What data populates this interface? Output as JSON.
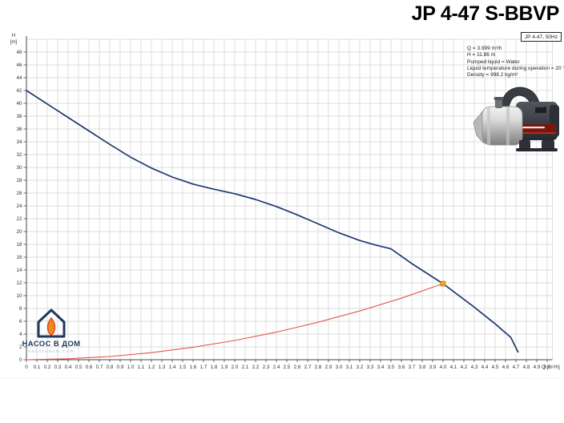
{
  "header": {
    "title": "JP 4-47 S-BBVP"
  },
  "info_panel": {
    "model_label": "JP 4-47, 50Hz",
    "lines": [
      "Q = 3.999 m³/h",
      "H = 11.86 m",
      "Pumped liquid = Water",
      "Liquid temperature during operation = 20 °C",
      "Density = 998.2 kg/m³"
    ]
  },
  "logo": {
    "name": "НАСОС В ДОМ",
    "site": "nasosvdom.com"
  },
  "colors": {
    "pump_curve": "#1d3a6d",
    "system_curve": "#e2574b",
    "operating_point_fill": "#f5a623",
    "operating_point_border": "#c77800",
    "grid": "#d2d2d2",
    "axis": "#444444",
    "tick_text": "#333333",
    "logo_navy": "#1c3a5e",
    "flame_orange": "#f08a1e",
    "flame_red": "#e04a1e"
  },
  "chart_data": {
    "type": "line",
    "title": "JP 4-47 S-BBVP",
    "xlabel": "Q [m³/h]",
    "ylabel_line1": "H",
    "ylabel_line2": "[m]",
    "xlim": [
      0,
      5.05
    ],
    "ylim": [
      0,
      50.5
    ],
    "grid": true,
    "x_tick_step": 0.1,
    "y_tick_step": 2,
    "x_ticks": [
      "0",
      "0.1",
      "0.2",
      "0.3",
      "0.4",
      "0.5",
      "0.6",
      "0.7",
      "0.8",
      "0.9",
      "1.0",
      "1.1",
      "1.2",
      "1.3",
      "1.4",
      "1.5",
      "1.6",
      "1.7",
      "1.8",
      "1.9",
      "2.0",
      "2.1",
      "2.2",
      "2.3",
      "2.4",
      "2.5",
      "2.6",
      "2.7",
      "2.8",
      "2.9",
      "3.0",
      "3.1",
      "3.2",
      "3.3",
      "3.4",
      "3.5",
      "3.6",
      "3.7",
      "3.8",
      "3.9",
      "4.0",
      "4.1",
      "4.2",
      "4.3",
      "4.4",
      "4.5",
      "4.6",
      "4.7",
      "4.8",
      "4.9",
      "5.0"
    ],
    "y_ticks": [
      "0",
      "2",
      "4",
      "6",
      "8",
      "10",
      "12",
      "14",
      "16",
      "18",
      "20",
      "22",
      "24",
      "26",
      "28",
      "30",
      "32",
      "34",
      "36",
      "38",
      "40",
      "42",
      "44",
      "46",
      "48"
    ],
    "series": [
      {
        "name": "pump-curve",
        "color_key": "pump_curve",
        "width": 1.7,
        "points": [
          [
            0,
            42
          ],
          [
            0.2,
            39.9
          ],
          [
            0.4,
            37.8
          ],
          [
            0.6,
            35.7
          ],
          [
            0.8,
            33.6
          ],
          [
            1.0,
            31.6
          ],
          [
            1.2,
            29.9
          ],
          [
            1.4,
            28.5
          ],
          [
            1.6,
            27.4
          ],
          [
            1.8,
            26.6
          ],
          [
            2.0,
            25.9
          ],
          [
            2.2,
            25.0
          ],
          [
            2.4,
            23.9
          ],
          [
            2.6,
            22.6
          ],
          [
            2.8,
            21.2
          ],
          [
            3.0,
            19.8
          ],
          [
            3.2,
            18.6
          ],
          [
            3.35,
            17.9
          ],
          [
            3.5,
            17.3
          ],
          [
            3.7,
            15.0
          ],
          [
            4.0,
            11.86
          ],
          [
            4.3,
            8.2
          ],
          [
            4.5,
            5.6
          ],
          [
            4.65,
            3.5
          ],
          [
            4.72,
            1.2
          ]
        ]
      },
      {
        "name": "system-curve",
        "color_key": "system_curve",
        "width": 1.1,
        "points": [
          [
            0,
            0
          ],
          [
            0.4,
            0.15
          ],
          [
            0.8,
            0.5
          ],
          [
            1.2,
            1.1
          ],
          [
            1.6,
            1.95
          ],
          [
            2.0,
            3.0
          ],
          [
            2.4,
            4.3
          ],
          [
            2.8,
            5.85
          ],
          [
            3.2,
            7.6
          ],
          [
            3.6,
            9.6
          ],
          [
            3.999,
            11.86
          ]
        ]
      }
    ],
    "operating_point": {
      "q": 3.999,
      "h": 11.86
    }
  }
}
